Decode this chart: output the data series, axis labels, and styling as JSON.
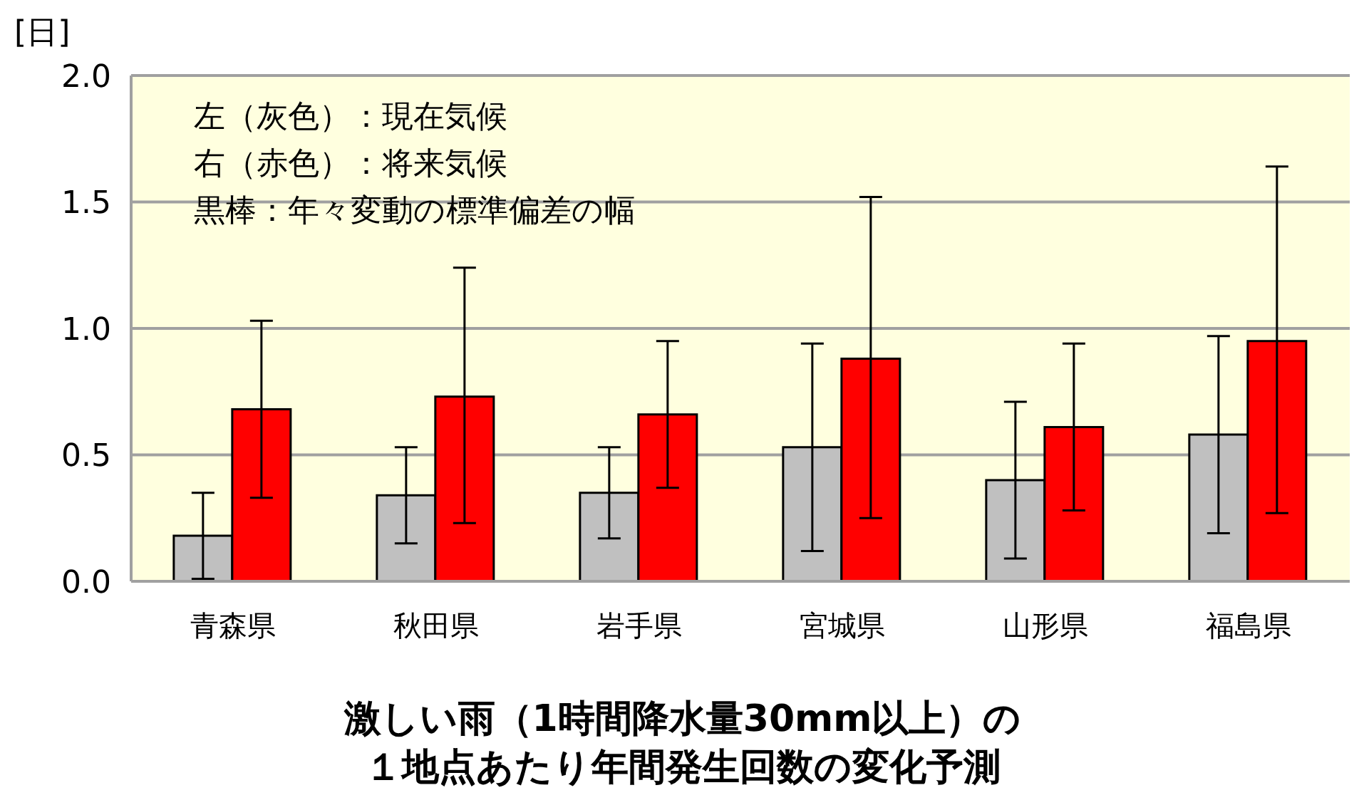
{
  "chart_data": {
    "type": "bar",
    "title": "激しい雨（1時間降水量30mm以上）の１地点あたり年間発生回数の変化予測",
    "ylabel": "[日]",
    "annotations": [
      "左（灰色）：現在気候",
      "右（赤色）：将来気候",
      "黒棒：年々変動の標準偏差の幅"
    ],
    "categories": [
      "青森県",
      "秋田県",
      "岩手県",
      "宮城県",
      "山形県",
      "福島県"
    ],
    "series": [
      {
        "color": "#c0c0c0",
        "values": [
          0.18,
          0.34,
          0.35,
          0.53,
          0.4,
          0.58
        ],
        "errors": [
          [
            0.01,
            0.35
          ],
          [
            0.15,
            0.53
          ],
          [
            0.17,
            0.53
          ],
          [
            0.12,
            0.94
          ],
          [
            0.09,
            0.71
          ],
          [
            0.19,
            0.97
          ]
        ]
      },
      {
        "color": "#ff0000",
        "values": [
          0.68,
          0.73,
          0.66,
          0.88,
          0.61,
          0.95
        ],
        "errors": [
          [
            0.33,
            1.03
          ],
          [
            0.23,
            1.24
          ],
          [
            0.37,
            0.95
          ],
          [
            0.25,
            1.52
          ],
          [
            0.28,
            0.94
          ],
          [
            0.27,
            1.64
          ]
        ]
      }
    ],
    "ylim": [
      0,
      2
    ],
    "yticks": [
      {
        "value": 0,
        "label": "0.0"
      },
      {
        "value": 0.5,
        "label": "0.5"
      },
      {
        "value": 1,
        "label": "1.0"
      },
      {
        "value": 1.5,
        "label": "1.5"
      },
      {
        "value": 2,
        "label": "2.0"
      }
    ],
    "grid": "y",
    "legend": false
  }
}
